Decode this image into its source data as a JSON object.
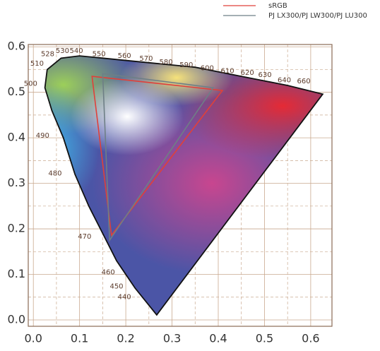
{
  "chart_data": {
    "type": "scatter",
    "xlim": [
      -0.011,
      0.646
    ],
    "ylim": [
      -0.014,
      0.605
    ],
    "xticks": [
      {
        "value": 0,
        "label": "0.0"
      },
      0.1,
      0.2,
      0.3,
      0.4,
      0.5,
      0.6
    ],
    "yticks": [
      {
        "value": 0,
        "label": "0.0"
      },
      0.1,
      0.2,
      0.3,
      0.4,
      0.5,
      0.6
    ],
    "minor_xticks": [
      0.05,
      0.15,
      0.25,
      0.35,
      0.45,
      0.55
    ],
    "minor_yticks": [
      0.05,
      0.15,
      0.25,
      0.35,
      0.45,
      0.55
    ],
    "grid": true,
    "legend": "top-right",
    "series": [
      {
        "name": "sRGB",
        "color": "#e0403a",
        "x": [
          0.127,
          0.409,
          0.169
        ],
        "values": [
          0.535,
          0.504,
          0.186
        ]
      },
      {
        "name": "PJ LX300/PJ LW300/PJ LU300",
        "color": "#6e7f86",
        "x": [
          0.15,
          0.389,
          0.165
        ],
        "values": [
          0.541,
          0.51,
          0.175
        ]
      }
    ],
    "locus": {
      "x": [
        0.267,
        0.22,
        0.18,
        0.15,
        0.12,
        0.09,
        0.065,
        0.04,
        0.025,
        0.03,
        0.06,
        0.1,
        0.15,
        0.25,
        0.35,
        0.45,
        0.55,
        0.626
      ],
      "y": [
        0.011,
        0.07,
        0.13,
        0.19,
        0.25,
        0.32,
        0.4,
        0.46,
        0.51,
        0.55,
        0.575,
        0.58,
        0.575,
        0.565,
        0.555,
        0.535,
        0.515,
        0.496
      ]
    },
    "annotations": [
      {
        "text": "440",
        "x": 0.197,
        "y": 0.05
      },
      {
        "text": "450",
        "x": 0.18,
        "y": 0.074
      },
      {
        "text": "460",
        "x": 0.162,
        "y": 0.105
      },
      {
        "text": "470",
        "x": 0.111,
        "y": 0.183
      },
      {
        "text": "480",
        "x": 0.047,
        "y": 0.322
      },
      {
        "text": "490",
        "x": 0.02,
        "y": 0.405
      },
      {
        "text": "500",
        "x": -0.006,
        "y": 0.519
      },
      {
        "text": "510",
        "x": 0.008,
        "y": 0.563
      },
      {
        "text": "528",
        "x": 0.031,
        "y": 0.584
      },
      {
        "text": "530",
        "x": 0.063,
        "y": 0.591
      },
      {
        "text": "540",
        "x": 0.093,
        "y": 0.591
      },
      {
        "text": "550",
        "x": 0.142,
        "y": 0.584
      },
      {
        "text": "560",
        "x": 0.197,
        "y": 0.58
      },
      {
        "text": "570",
        "x": 0.244,
        "y": 0.574
      },
      {
        "text": "580",
        "x": 0.287,
        "y": 0.566
      },
      {
        "text": "590",
        "x": 0.331,
        "y": 0.56
      },
      {
        "text": "600",
        "x": 0.376,
        "y": 0.553
      },
      {
        "text": "610",
        "x": 0.42,
        "y": 0.547
      },
      {
        "text": "620",
        "x": 0.463,
        "y": 0.543
      },
      {
        "text": "630",
        "x": 0.501,
        "y": 0.538
      },
      {
        "text": "640",
        "x": 0.543,
        "y": 0.527
      },
      {
        "text": "660",
        "x": 0.585,
        "y": 0.524
      }
    ]
  }
}
